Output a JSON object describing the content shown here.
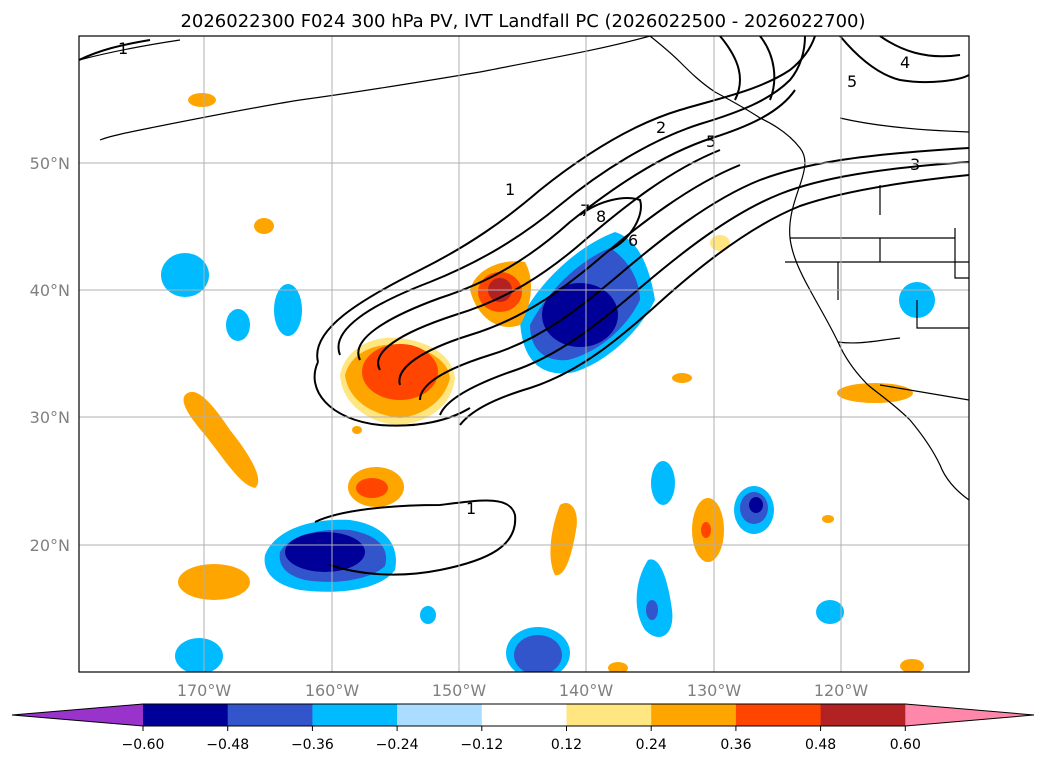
{
  "title": "2026022300 F024 300 hPa PV, IVT Landfall PC (2026022500 - 2026022700)",
  "lat_labels": [
    "50°N",
    "40°N",
    "30°N",
    "20°N"
  ],
  "lon_labels": [
    "170°W",
    "160°W",
    "150°W",
    "140°W",
    "130°W",
    "120°W"
  ],
  "colorbar": {
    "ticks": [
      "−0.60",
      "−0.48",
      "−0.36",
      "−0.24",
      "−0.12",
      "0.12",
      "0.24",
      "0.36",
      "0.48",
      "0.60"
    ],
    "colors": [
      "#9933cc",
      "#000099",
      "#3355cc",
      "#00bbff",
      "#aaddff",
      "#ffffff",
      "#ffe680",
      "#ffa500",
      "#ff4500",
      "#b22222",
      "#ff88aa"
    ]
  },
  "contour_labels": [
    "1",
    "1",
    "2",
    "5",
    "7",
    "8",
    "6",
    "5",
    "4",
    "3",
    "1"
  ],
  "palette": {
    "gridline": "#b0b0b0",
    "coast": "#000000"
  }
}
